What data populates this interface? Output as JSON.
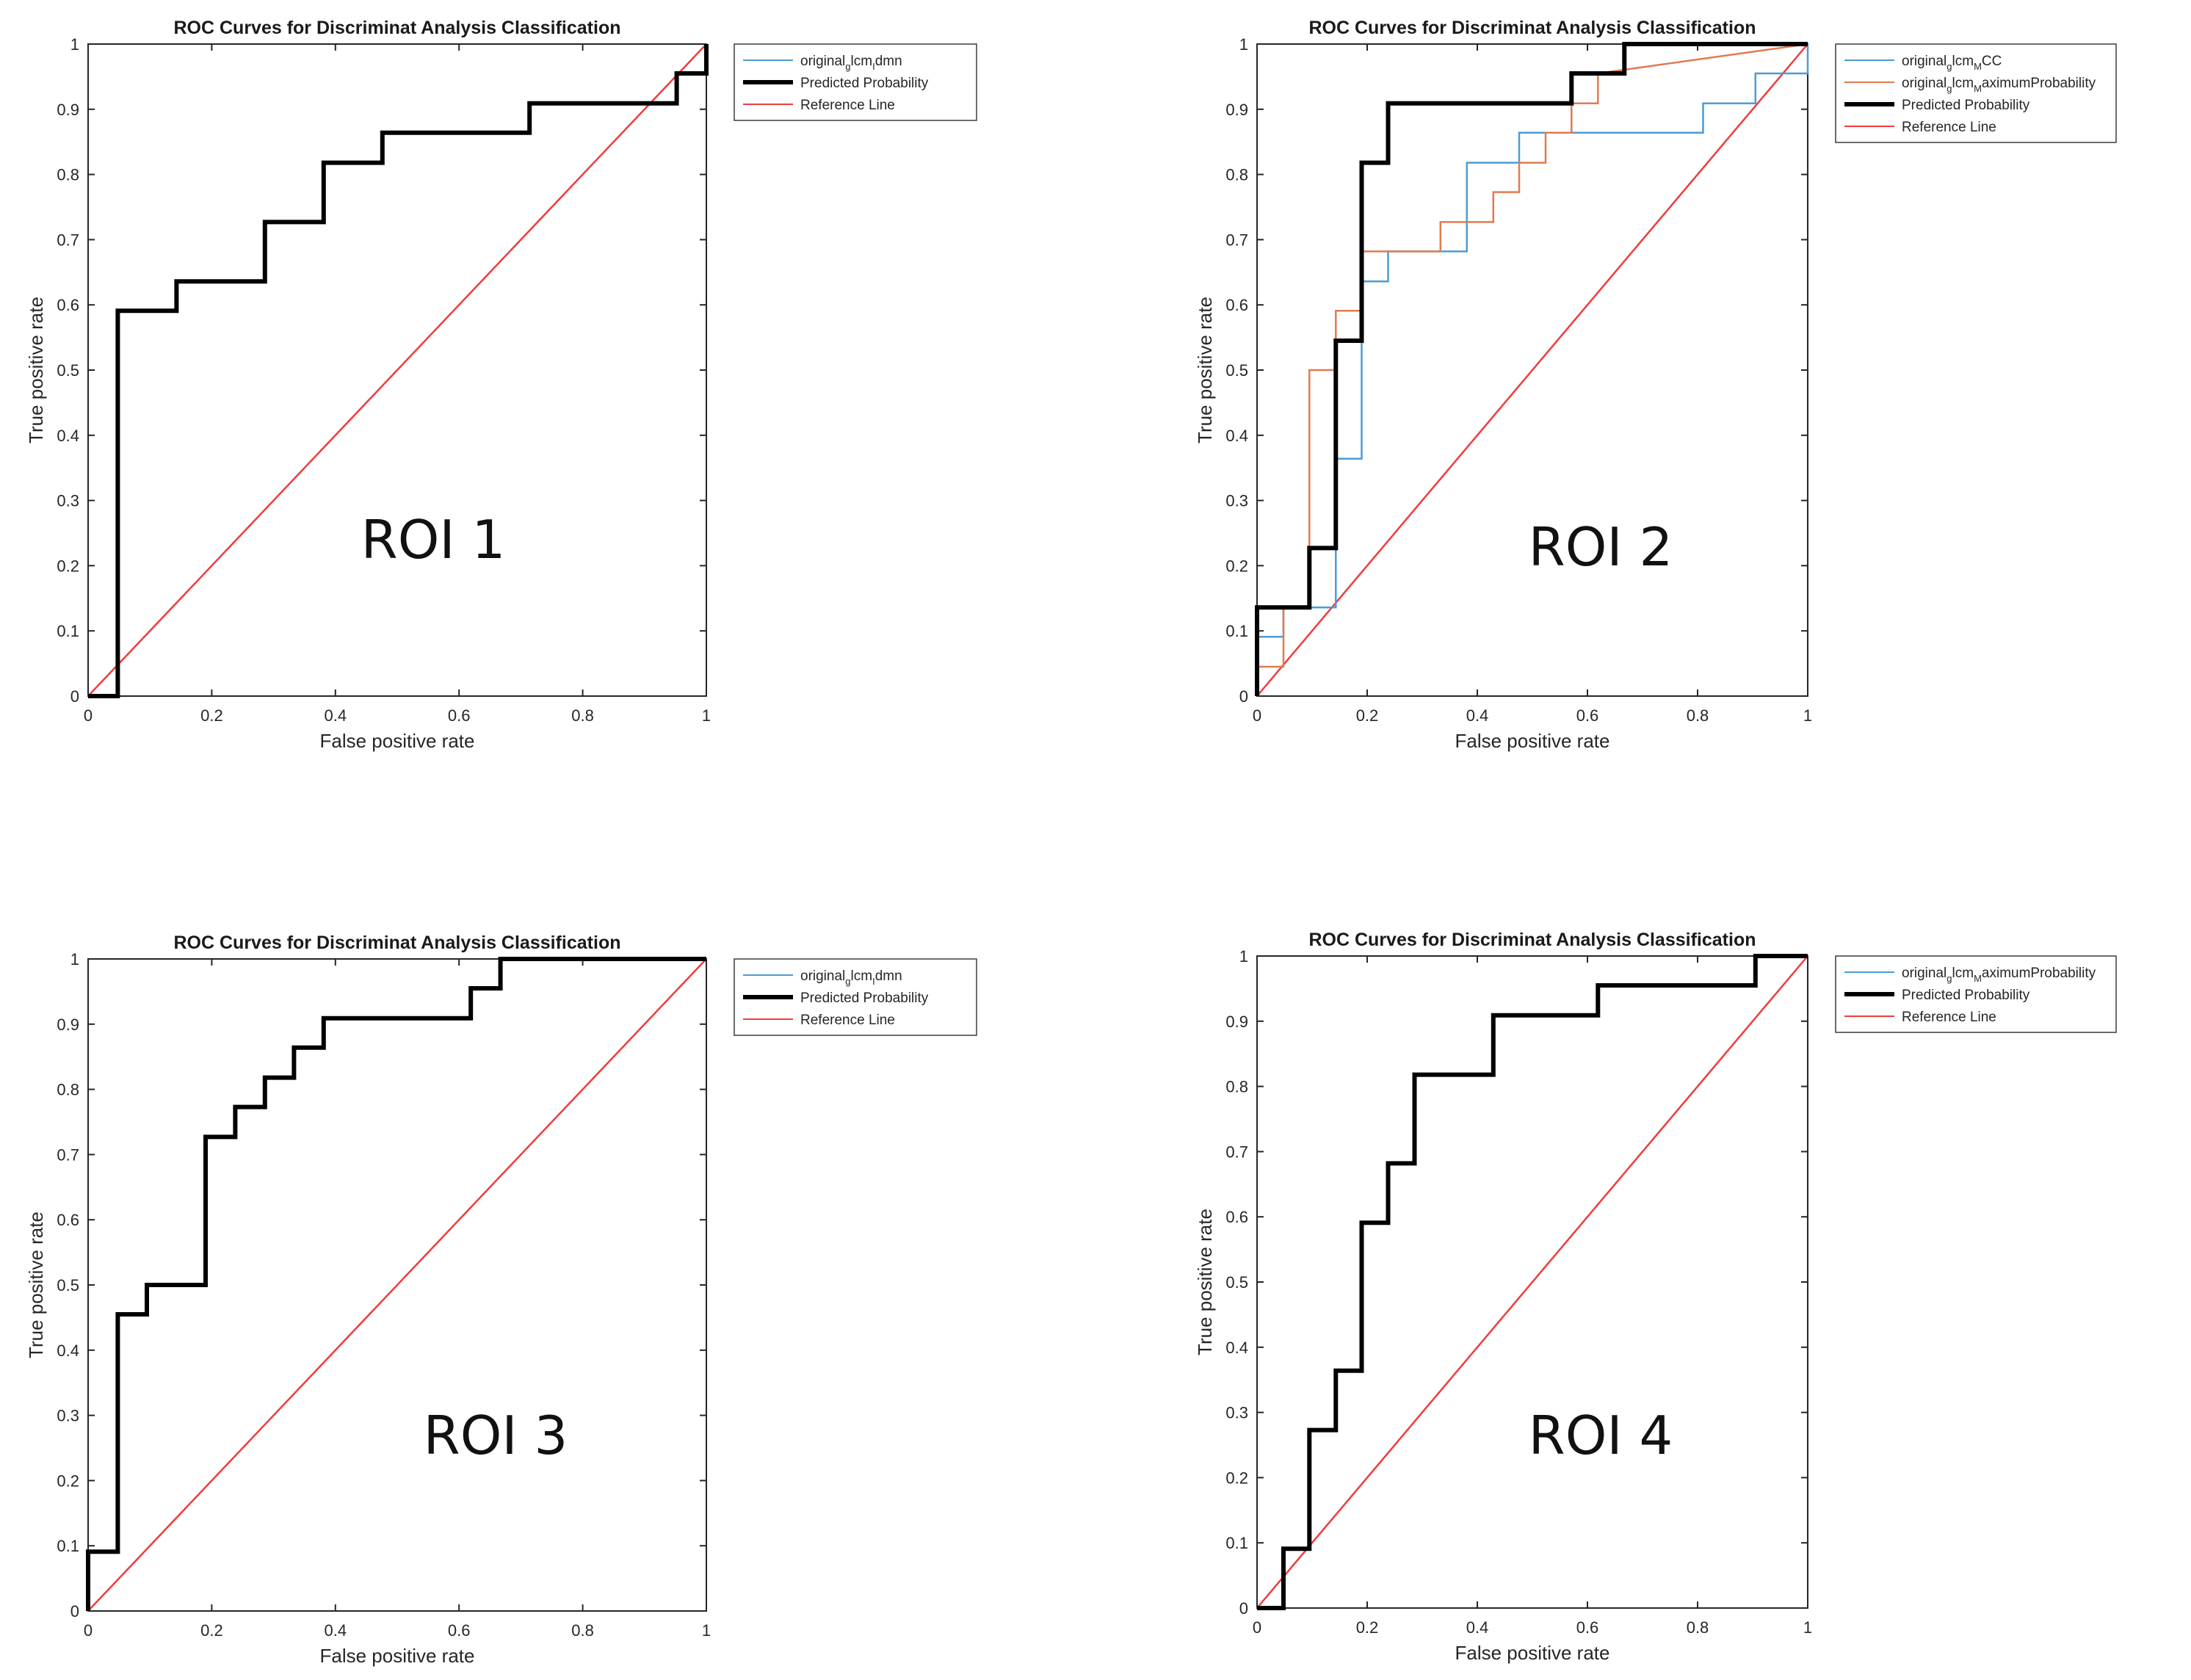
{
  "figure_title": "ROC Curves for Discriminat Analysis Classification",
  "colors": {
    "blue": "#4a9cd6",
    "orange": "#e07b4f",
    "black": "#000000",
    "red": "#f03c3c",
    "axes": "#262626"
  },
  "chart_data": [
    {
      "type": "line",
      "title": "ROC Curves for Discriminat Analysis Classification",
      "xlabel": "False positive rate",
      "ylabel": "True positive rate",
      "xlim": [
        0,
        1
      ],
      "ylim": [
        0,
        1
      ],
      "x_ticks": [
        "0",
        "0.2",
        "0.4",
        "0.6",
        "0.8",
        "1"
      ],
      "y_ticks": [
        "0",
        "0.1",
        "0.2",
        "0.3",
        "0.4",
        "0.5",
        "0.6",
        "0.7",
        "0.8",
        "0.9",
        "1"
      ],
      "annotation": "ROI 1",
      "legend_position": "outside top-right",
      "legend": [
        {
          "parts": [
            "original",
            "g",
            "lcm",
            "I",
            "dmn"
          ],
          "color_key": "blue",
          "width": 2
        },
        {
          "parts": [
            "Predicted Probability"
          ],
          "color_key": "black",
          "width": 6
        },
        {
          "parts": [
            "Reference Line"
          ],
          "color_key": "red",
          "width": 2
        }
      ],
      "series": [
        {
          "name": "Predicted Probability",
          "color_key": "black",
          "width": 6,
          "x": [
            0,
            0.048,
            0.048,
            0.143,
            0.143,
            0.286,
            0.286,
            0.381,
            0.381,
            0.476,
            0.476,
            0.714,
            0.714,
            0.952,
            0.952,
            1,
            1
          ],
          "y": [
            0,
            0,
            0.591,
            0.591,
            0.636,
            0.636,
            0.727,
            0.727,
            0.818,
            0.818,
            0.864,
            0.864,
            0.909,
            0.909,
            0.955,
            0.955,
            1
          ]
        },
        {
          "name": "Reference Line",
          "color_key": "red",
          "width": 2.5,
          "x": [
            0,
            1
          ],
          "y": [
            0,
            1
          ]
        }
      ]
    },
    {
      "type": "line",
      "title": "ROC Curves for Discriminat Analysis Classification",
      "xlabel": "False positive rate",
      "ylabel": "True positive rate",
      "xlim": [
        0,
        1
      ],
      "ylim": [
        0,
        1
      ],
      "x_ticks": [
        "0",
        "0.2",
        "0.4",
        "0.6",
        "0.8",
        "1"
      ],
      "y_ticks": [
        "0",
        "0.1",
        "0.2",
        "0.3",
        "0.4",
        "0.5",
        "0.6",
        "0.7",
        "0.8",
        "0.9",
        "1"
      ],
      "annotation": "ROI 2",
      "legend_position": "outside top-right",
      "legend": [
        {
          "parts": [
            "original",
            "g",
            "lcm",
            "M",
            "CC"
          ],
          "color_key": "blue",
          "width": 2
        },
        {
          "parts": [
            "original",
            "g",
            "lcm",
            "M",
            "aximumProbability"
          ],
          "color_key": "orange",
          "width": 2
        },
        {
          "parts": [
            "Predicted Probability"
          ],
          "color_key": "black",
          "width": 6
        },
        {
          "parts": [
            "Reference Line"
          ],
          "color_key": "red",
          "width": 2
        }
      ],
      "series": [
        {
          "name": "original_glcm_MCC",
          "color_key": "blue",
          "width": 2.5,
          "x": [
            0,
            0,
            0.048,
            0.048,
            0.143,
            0.143,
            0.19,
            0.19,
            0.238,
            0.238,
            0.381,
            0.381,
            0.476,
            0.476,
            0.81,
            0.81,
            0.905,
            0.905,
            1,
            1
          ],
          "y": [
            0,
            0.091,
            0.091,
            0.136,
            0.136,
            0.364,
            0.364,
            0.636,
            0.636,
            0.682,
            0.682,
            0.818,
            0.818,
            0.864,
            0.864,
            0.909,
            0.909,
            0.955,
            0.955,
            1
          ]
        },
        {
          "name": "original_glcm_MaximumProbability",
          "color_key": "orange",
          "width": 2.5,
          "x": [
            0,
            0,
            0.048,
            0.048,
            0.095,
            0.095,
            0.143,
            0.143,
            0.19,
            0.19,
            0.333,
            0.333,
            0.429,
            0.429,
            0.476,
            0.476,
            0.524,
            0.524,
            0.571,
            0.571,
            0.619,
            0.619,
            1
          ],
          "y": [
            0,
            0.045,
            0.045,
            0.136,
            0.136,
            0.5,
            0.5,
            0.591,
            0.591,
            0.682,
            0.682,
            0.727,
            0.727,
            0.773,
            0.773,
            0.818,
            0.818,
            0.864,
            0.864,
            0.909,
            0.909,
            0.955,
            1
          ]
        },
        {
          "name": "Predicted Probability",
          "color_key": "black",
          "width": 6,
          "x": [
            0,
            0,
            0.095,
            0.095,
            0.143,
            0.143,
            0.19,
            0.19,
            0.238,
            0.238,
            0.571,
            0.571,
            0.667,
            0.667,
            1
          ],
          "y": [
            0,
            0.136,
            0.136,
            0.227,
            0.227,
            0.545,
            0.545,
            0.818,
            0.818,
            0.909,
            0.909,
            0.955,
            0.955,
            1,
            1
          ]
        },
        {
          "name": "Reference Line",
          "color_key": "red",
          "width": 2.5,
          "x": [
            0,
            1
          ],
          "y": [
            0,
            1
          ]
        }
      ]
    },
    {
      "type": "line",
      "title": "ROC Curves for Discriminat Analysis Classification",
      "xlabel": "False positive rate",
      "ylabel": "True positive rate",
      "xlim": [
        0,
        1
      ],
      "ylim": [
        0,
        1
      ],
      "x_ticks": [
        "0",
        "0.2",
        "0.4",
        "0.6",
        "0.8",
        "1"
      ],
      "y_ticks": [
        "0",
        "0.1",
        "0.2",
        "0.3",
        "0.4",
        "0.5",
        "0.6",
        "0.7",
        "0.8",
        "0.9",
        "1"
      ],
      "annotation": "ROI 3",
      "legend_position": "outside top-right",
      "legend": [
        {
          "parts": [
            "original",
            "g",
            "lcm",
            "I",
            "dmn"
          ],
          "color_key": "blue",
          "width": 2
        },
        {
          "parts": [
            "Predicted Probability"
          ],
          "color_key": "black",
          "width": 6
        },
        {
          "parts": [
            "Reference Line"
          ],
          "color_key": "red",
          "width": 2
        }
      ],
      "series": [
        {
          "name": "Predicted Probability",
          "color_key": "black",
          "width": 6,
          "x": [
            0,
            0,
            0.048,
            0.048,
            0.095,
            0.095,
            0.19,
            0.19,
            0.238,
            0.238,
            0.286,
            0.286,
            0.333,
            0.333,
            0.381,
            0.381,
            0.619,
            0.619,
            0.667,
            0.667,
            1
          ],
          "y": [
            0,
            0.091,
            0.091,
            0.455,
            0.455,
            0.5,
            0.5,
            0.727,
            0.727,
            0.773,
            0.773,
            0.818,
            0.818,
            0.864,
            0.864,
            0.909,
            0.909,
            0.955,
            0.955,
            1,
            1
          ]
        },
        {
          "name": "Reference Line",
          "color_key": "red",
          "width": 2.5,
          "x": [
            0,
            1
          ],
          "y": [
            0,
            1
          ]
        }
      ]
    },
    {
      "type": "line",
      "title": "ROC Curves for Discriminat Analysis Classification",
      "xlabel": "False positive rate",
      "ylabel": "True positive rate",
      "xlim": [
        0,
        1
      ],
      "ylim": [
        0,
        1
      ],
      "x_ticks": [
        "0",
        "0.2",
        "0.4",
        "0.6",
        "0.8",
        "1"
      ],
      "y_ticks": [
        "0",
        "0.1",
        "0.2",
        "0.3",
        "0.4",
        "0.5",
        "0.6",
        "0.7",
        "0.8",
        "0.9",
        "1"
      ],
      "annotation": "ROI 4",
      "legend_position": "outside top-right",
      "legend": [
        {
          "parts": [
            "original",
            "g",
            "lcm",
            "M",
            "aximumProbability"
          ],
          "color_key": "blue",
          "width": 2
        },
        {
          "parts": [
            "Predicted Probability"
          ],
          "color_key": "black",
          "width": 6
        },
        {
          "parts": [
            "Reference Line"
          ],
          "color_key": "red",
          "width": 2
        }
      ],
      "series": [
        {
          "name": "Predicted Probability",
          "color_key": "black",
          "width": 6,
          "x": [
            0,
            0.048,
            0.048,
            0.095,
            0.095,
            0.143,
            0.143,
            0.19,
            0.19,
            0.238,
            0.238,
            0.286,
            0.286,
            0.429,
            0.429,
            0.619,
            0.619,
            0.905,
            0.905,
            1
          ],
          "y": [
            0,
            0,
            0.091,
            0.091,
            0.273,
            0.273,
            0.364,
            0.364,
            0.591,
            0.591,
            0.682,
            0.682,
            0.818,
            0.818,
            0.909,
            0.909,
            0.955,
            0.955,
            1,
            1
          ]
        },
        {
          "name": "Reference Line",
          "color_key": "red",
          "width": 2.5,
          "x": [
            0,
            1
          ],
          "y": [
            0,
            1
          ]
        }
      ]
    }
  ]
}
